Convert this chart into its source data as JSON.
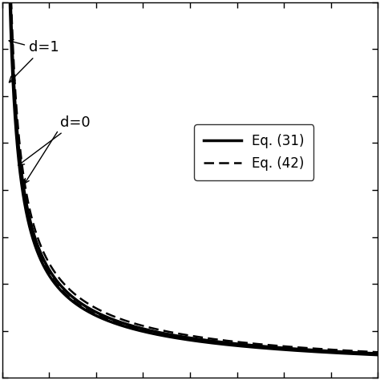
{
  "background_color": "#ffffff",
  "xlim": [
    0,
    10
  ],
  "ylim": [
    0,
    10
  ],
  "legend_labels": [
    "Eq. (31)",
    "Eq. (42)"
  ],
  "annotation_d1": "d=1",
  "annotation_d0": "d=0",
  "line_color": "#000000",
  "figsize": [
    4.74,
    4.74
  ],
  "dpi": 100,
  "n_xticks": 9,
  "n_yticks": 9,
  "lw_solid": 2.5,
  "lw_dashed": 1.8
}
